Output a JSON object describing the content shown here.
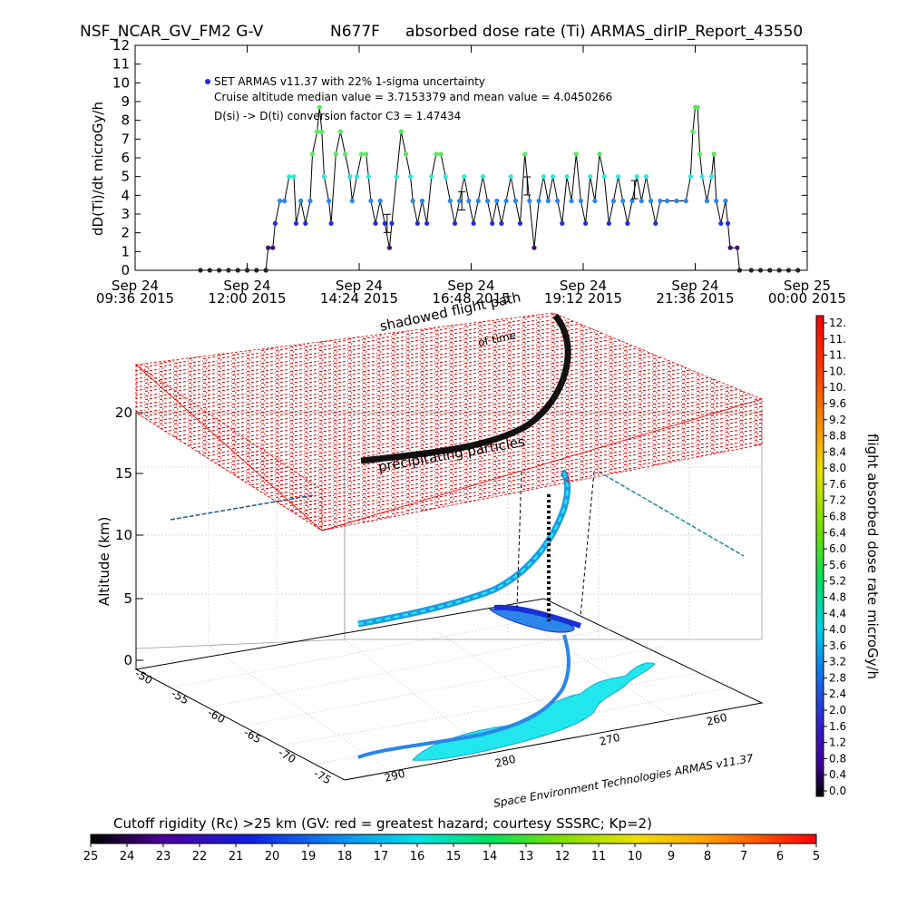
{
  "header": {
    "title_parts": [
      "NSF_NCAR_GV_FM2 G-V",
      "N677F",
      "absorbed dose rate (Ti) ARMAS_dirIP_Report_43550"
    ]
  },
  "chart_data": [
    {
      "type": "line",
      "ylabel": "dD(Ti)/dt microGy/h",
      "ylim": [
        0,
        12
      ],
      "yticks": [
        "0",
        "1",
        "2",
        "3",
        "4",
        "5",
        "6",
        "7",
        "8",
        "9",
        "10",
        "11",
        "12"
      ],
      "xticks": [
        {
          "date": "Sep 24",
          "time": "09:36 2015"
        },
        {
          "date": "Sep 24",
          "time": "12:00 2015"
        },
        {
          "date": "Sep 24",
          "time": "14:24 2015"
        },
        {
          "date": "Sep 24",
          "time": "16:48 2015"
        },
        {
          "date": "Sep 24",
          "time": "19:12 2015"
        },
        {
          "date": "Sep 24",
          "time": "21:36 2015"
        },
        {
          "date": "Sep 25",
          "time": "00:00 2015"
        }
      ],
      "annotations": [
        "SET ARMAS v11.37 with 22% 1-sigma uncertainty",
        "Cruise altitude median value = 3.7153379 and mean value = 4.0450266",
        "D(si) -> D(ti) conversion factor C3 = 1.47434"
      ],
      "series": [
        {
          "name": "SET ARMAS v11.37 with 22% 1-sigma uncertainty",
          "x_hours_labels": "Sep 24 09:36 2015 to Sep 25 00:00 2015",
          "points": [
            [
              11.0,
              0
            ],
            [
              11.2,
              0
            ],
            [
              11.4,
              0
            ],
            [
              11.6,
              0
            ],
            [
              11.8,
              0
            ],
            [
              12.0,
              0
            ],
            [
              12.2,
              0
            ],
            [
              12.4,
              0
            ],
            [
              12.45,
              1.2
            ],
            [
              12.55,
              1.2
            ],
            [
              12.6,
              2.5
            ],
            [
              12.7,
              3.7
            ],
            [
              12.8,
              3.7
            ],
            [
              12.9,
              5.0
            ],
            [
              13.0,
              5.0
            ],
            [
              13.05,
              2.5
            ],
            [
              13.15,
              3.7
            ],
            [
              13.25,
              2.5
            ],
            [
              13.35,
              3.7
            ],
            [
              13.4,
              6.2
            ],
            [
              13.5,
              7.4
            ],
            [
              13.55,
              8.7
            ],
            [
              13.6,
              7.4
            ],
            [
              13.65,
              5.0
            ],
            [
              13.75,
              3.7
            ],
            [
              13.8,
              2.5
            ],
            [
              13.9,
              6.2
            ],
            [
              14.0,
              7.4
            ],
            [
              14.1,
              6.2
            ],
            [
              14.2,
              5.0
            ],
            [
              14.25,
              3.7
            ],
            [
              14.35,
              5.0
            ],
            [
              14.45,
              6.2
            ],
            [
              14.55,
              6.2
            ],
            [
              14.6,
              5.0
            ],
            [
              14.65,
              3.7
            ],
            [
              14.75,
              2.5
            ],
            [
              14.85,
              3.7
            ],
            [
              14.95,
              2.5
            ],
            [
              15.05,
              1.2
            ],
            [
              15.1,
              2.5
            ],
            [
              15.2,
              5.0
            ],
            [
              15.3,
              7.4
            ],
            [
              15.4,
              6.2
            ],
            [
              15.5,
              5.0
            ],
            [
              15.55,
              3.7
            ],
            [
              15.65,
              2.5
            ],
            [
              15.75,
              3.7
            ],
            [
              15.85,
              2.5
            ],
            [
              15.95,
              5.0
            ],
            [
              16.05,
              6.2
            ],
            [
              16.15,
              6.2
            ],
            [
              16.25,
              5.0
            ],
            [
              16.35,
              3.7
            ],
            [
              16.45,
              2.5
            ],
            [
              16.55,
              3.7
            ],
            [
              16.65,
              5.0
            ],
            [
              16.75,
              3.7
            ],
            [
              16.85,
              2.5
            ],
            [
              16.95,
              3.7
            ],
            [
              17.05,
              5.0
            ],
            [
              17.15,
              3.7
            ],
            [
              17.25,
              2.5
            ],
            [
              17.35,
              3.7
            ],
            [
              17.45,
              2.5
            ],
            [
              17.55,
              3.7
            ],
            [
              17.65,
              5.0
            ],
            [
              17.75,
              3.7
            ],
            [
              17.85,
              2.5
            ],
            [
              17.95,
              6.2
            ],
            [
              18.05,
              3.7
            ],
            [
              18.15,
              1.2
            ],
            [
              18.25,
              3.7
            ],
            [
              18.35,
              5.0
            ],
            [
              18.45,
              3.7
            ],
            [
              18.55,
              5.0
            ],
            [
              18.65,
              3.7
            ],
            [
              18.75,
              2.5
            ],
            [
              18.85,
              5.0
            ],
            [
              18.95,
              3.7
            ],
            [
              19.05,
              6.2
            ],
            [
              19.15,
              3.7
            ],
            [
              19.25,
              2.5
            ],
            [
              19.35,
              5.0
            ],
            [
              19.45,
              3.7
            ],
            [
              19.55,
              6.2
            ],
            [
              19.65,
              5.0
            ],
            [
              19.75,
              2.5
            ],
            [
              19.85,
              3.7
            ],
            [
              19.95,
              5.0
            ],
            [
              20.05,
              3.7
            ],
            [
              20.15,
              2.5
            ],
            [
              20.25,
              3.7
            ],
            [
              20.35,
              5.0
            ],
            [
              20.45,
              3.7
            ],
            [
              20.55,
              5.0
            ],
            [
              20.65,
              3.7
            ],
            [
              20.75,
              2.5
            ],
            [
              20.85,
              3.7
            ],
            [
              21.0,
              3.7
            ],
            [
              21.2,
              3.7
            ],
            [
              21.4,
              3.7
            ],
            [
              21.5,
              5.0
            ],
            [
              21.55,
              7.4
            ],
            [
              21.6,
              8.7
            ],
            [
              21.65,
              8.7
            ],
            [
              21.7,
              6.2
            ],
            [
              21.75,
              5.0
            ],
            [
              21.85,
              3.7
            ],
            [
              21.95,
              5.0
            ],
            [
              22.0,
              6.2
            ],
            [
              22.05,
              3.7
            ],
            [
              22.15,
              2.5
            ],
            [
              22.25,
              3.7
            ],
            [
              22.3,
              2.5
            ],
            [
              22.35,
              1.2
            ],
            [
              22.5,
              1.2
            ],
            [
              22.55,
              0
            ],
            [
              22.8,
              0
            ],
            [
              23.0,
              0
            ],
            [
              23.2,
              0
            ],
            [
              23.4,
              0
            ],
            [
              23.6,
              0
            ],
            [
              23.8,
              0
            ]
          ]
        }
      ]
    },
    {
      "type": "scatter",
      "zlabel": "Altitude (km)",
      "zticks": [
        "0",
        "5",
        "10",
        "15",
        "20"
      ],
      "yticks": [
        "-50",
        "-55",
        "-60",
        "-65",
        "-70",
        "-75"
      ],
      "xticks": [
        "290",
        "280",
        "270",
        "260"
      ],
      "annotations": [
        "shadowed flight path",
        "of time",
        "precipitating particles"
      ],
      "credit": "Space Environment Technologies ARMAS v11.37",
      "colorbar": {
        "label": "flight absorbed dose rate microGy/h",
        "ticks": [
          "12.",
          "11.",
          "11.",
          "10.",
          "10.",
          "9.6",
          "9.2",
          "8.8",
          "8.4",
          "8.0",
          "7.6",
          "7.2",
          "6.8",
          "6.4",
          "6.0",
          "5.6",
          "5.2",
          "4.8",
          "4.4",
          "4.0",
          "3.6",
          "3.2",
          "2.8",
          "2.4",
          "2.0",
          "1.6",
          "1.2",
          "0.8",
          "0.4",
          "0.0"
        ]
      }
    },
    {
      "type": "heatmap",
      "title": "Cutoff rigidity (Rc) >25 km (GV: red = greatest hazard; courtesy SSSRC; Kp=2)",
      "ticks": [
        "25",
        "24",
        "23",
        "22",
        "21",
        "20",
        "19",
        "18",
        "17",
        "16",
        "15",
        "14",
        "13",
        "12",
        "11",
        "10",
        "9",
        "8",
        "7",
        "6",
        "5"
      ]
    }
  ],
  "colors": {
    "dark": "#222222",
    "purple": "#40106a",
    "blue": "#1b2fd6",
    "lightblue": "#2a86e8",
    "cyan": "#28e8e0",
    "green": "#58e860",
    "grid": "#d0d0d0",
    "red": "#e00000"
  }
}
